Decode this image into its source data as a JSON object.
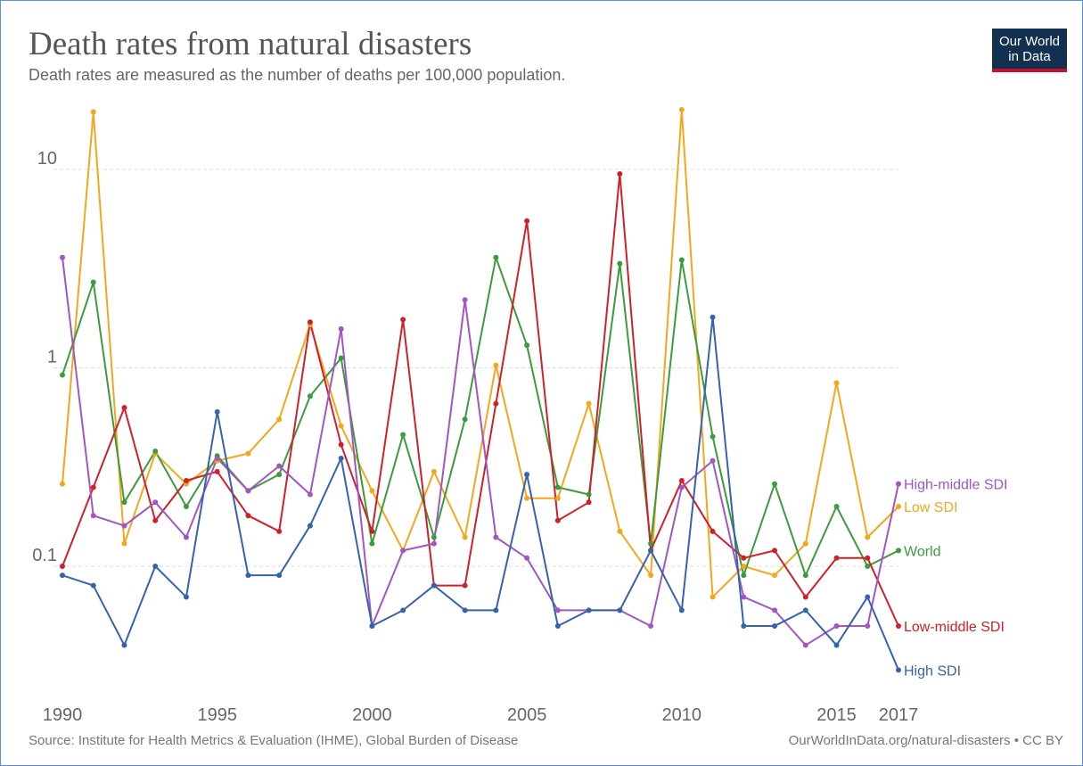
{
  "header": {
    "title": "Death rates from natural disasters",
    "subtitle": "Death rates are measured as the number of deaths per 100,000 population."
  },
  "logo": {
    "line1": "Our World",
    "line2": "in Data"
  },
  "footer": {
    "source": "Source: Institute for Health Metrics & Evaluation (IHME), Global Burden of Disease",
    "credit": "OurWorldInData.org/natural-disasters • CC BY"
  },
  "chart_data": {
    "type": "line",
    "yscale": "log",
    "ylim": [
      0.02,
      25
    ],
    "xlim": [
      1990,
      2017
    ],
    "grid": true,
    "legend_placement": "right (inline labels at line ends)",
    "x_ticks": [
      1990,
      1995,
      2000,
      2005,
      2010,
      2015,
      2017
    ],
    "y_ticks": [
      {
        "value": 0.1,
        "label": "0.1"
      },
      {
        "value": 1,
        "label": "1"
      },
      {
        "value": 10,
        "label": "10"
      }
    ],
    "x": [
      1990,
      1991,
      1992,
      1993,
      1994,
      1995,
      1996,
      1997,
      1998,
      1999,
      2000,
      2001,
      2002,
      2003,
      2004,
      2005,
      2006,
      2007,
      2008,
      2009,
      2010,
      2011,
      2012,
      2013,
      2014,
      2015,
      2016,
      2017
    ],
    "series": [
      {
        "name": "Low SDI",
        "color": "#f3a71d",
        "values": [
          0.26,
          19.5,
          0.13,
          0.37,
          0.26,
          0.34,
          0.37,
          0.55,
          1.65,
          0.51,
          0.24,
          0.12,
          0.3,
          0.14,
          1.03,
          0.22,
          0.22,
          0.66,
          0.15,
          0.09,
          20,
          0.07,
          0.1,
          0.09,
          0.13,
          0.84,
          0.14,
          0.2
        ]
      },
      {
        "name": "World",
        "color": "#3c9b3c",
        "values": [
          0.92,
          2.7,
          0.21,
          0.38,
          0.2,
          0.36,
          0.24,
          0.29,
          0.72,
          1.12,
          0.13,
          0.46,
          0.14,
          0.55,
          3.6,
          1.3,
          0.25,
          0.23,
          3.35,
          0.13,
          3.5,
          0.45,
          0.09,
          0.26,
          0.09,
          0.2,
          0.1,
          0.12
        ]
      },
      {
        "name": "Low-middle SDI",
        "color": "#d0202a",
        "values": [
          0.1,
          0.25,
          0.63,
          0.17,
          0.27,
          0.3,
          0.18,
          0.15,
          1.7,
          0.41,
          0.15,
          1.75,
          0.08,
          0.08,
          0.66,
          5.5,
          0.17,
          0.21,
          9.5,
          0.12,
          0.27,
          0.15,
          0.11,
          0.12,
          0.07,
          0.11,
          0.11,
          0.05
        ]
      },
      {
        "name": "High-middle SDI",
        "color": "#a355c2",
        "values": [
          3.6,
          0.18,
          0.16,
          0.21,
          0.14,
          0.35,
          0.24,
          0.32,
          0.23,
          1.57,
          0.05,
          0.12,
          0.13,
          2.2,
          0.14,
          0.11,
          0.06,
          0.06,
          0.06,
          0.05,
          0.25,
          0.34,
          0.07,
          0.06,
          0.04,
          0.05,
          0.05,
          0.26
        ]
      },
      {
        "name": "High SDI",
        "color": "#3563ad",
        "values": [
          0.09,
          0.08,
          0.04,
          0.1,
          0.07,
          0.6,
          0.09,
          0.09,
          0.16,
          0.35,
          0.05,
          0.06,
          0.08,
          0.06,
          0.06,
          0.29,
          0.05,
          0.06,
          0.06,
          0.12,
          0.06,
          1.8,
          0.05,
          0.05,
          0.06,
          0.04,
          0.07,
          0.03
        ]
      }
    ]
  }
}
